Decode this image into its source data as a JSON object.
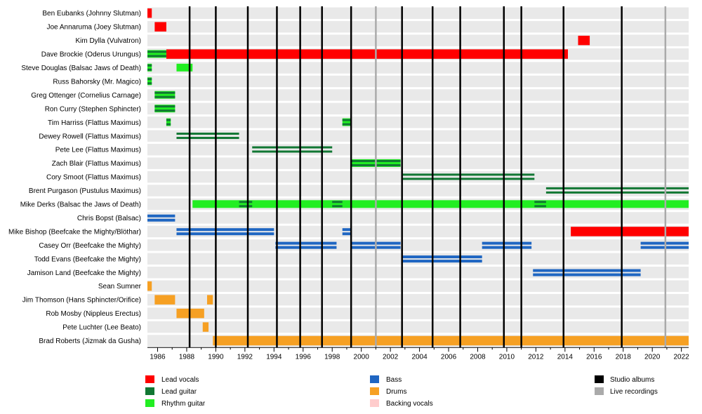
{
  "chart_data": {
    "type": "timeline",
    "x_range": [
      1985.3,
      2022.5
    ],
    "x_ticks": [
      "1986",
      "1988",
      "1990",
      "1992",
      "1994",
      "1996",
      "1998",
      "2000",
      "2002",
      "2004",
      "2006",
      "2008",
      "2010",
      "2012",
      "2014",
      "2016",
      "2018",
      "2020",
      "2022"
    ],
    "studio_albums": [
      1988.2,
      1990.0,
      1992.2,
      1994.2,
      1995.8,
      1997.3,
      1999.3,
      2002.8,
      2004.9,
      2006.8,
      2009.8,
      2011.0,
      2013.9,
      2017.9
    ],
    "live_recordings": [
      2001.0,
      2020.9
    ],
    "members": [
      {
        "name": "Ben Eubanks (Johnny Slutman)",
        "roles": [
          {
            "role": "vocals",
            "start": 1985.3,
            "end": 1985.6
          }
        ]
      },
      {
        "name": "Joe Annaruma (Joey Slutman)",
        "roles": [
          {
            "role": "vocals",
            "start": 1985.8,
            "end": 1986.6
          }
        ]
      },
      {
        "name": "Kim Dylla (Vulvatron)",
        "roles": [
          {
            "role": "vocals",
            "start": 2014.9,
            "end": 2015.7
          }
        ]
      },
      {
        "name": "Dave Brockie (Oderus Urungus)",
        "roles": [
          {
            "role": "vocals",
            "start": 1986.6,
            "end": 2014.2
          },
          {
            "role": "lead",
            "start": 1985.3,
            "end": 1986.6
          },
          {
            "role": "rhythm",
            "start": 1985.3,
            "end": 1986.6
          }
        ]
      },
      {
        "name": "Steve Douglas (Balsac Jaws of Death)",
        "roles": [
          {
            "role": "lead",
            "start": 1985.3,
            "end": 1985.6
          },
          {
            "role": "rhythm",
            "start": 1985.3,
            "end": 1985.6
          },
          {
            "role": "rhythm",
            "start": 1987.3,
            "end": 1988.4
          }
        ]
      },
      {
        "name": "Russ Bahorsky (Mr. Magico)",
        "roles": [
          {
            "role": "lead",
            "start": 1985.3,
            "end": 1985.6
          },
          {
            "role": "rhythm",
            "start": 1985.3,
            "end": 1985.6
          }
        ]
      },
      {
        "name": "Greg Ottenger (Cornelius Carnage)",
        "roles": [
          {
            "role": "lead",
            "start": 1985.8,
            "end": 1987.2
          },
          {
            "role": "rhythm",
            "start": 1985.8,
            "end": 1987.2
          }
        ]
      },
      {
        "name": "Ron Curry (Stephen Sphincter)",
        "roles": [
          {
            "role": "lead",
            "start": 1985.8,
            "end": 1987.2
          },
          {
            "role": "rhythm",
            "start": 1985.8,
            "end": 1987.2
          }
        ]
      },
      {
        "name": "Tim Harriss (Flattus Maximus)",
        "roles": [
          {
            "role": "lead",
            "start": 1986.6,
            "end": 1986.9
          },
          {
            "role": "rhythm",
            "start": 1986.6,
            "end": 1986.9
          },
          {
            "role": "lead",
            "start": 1998.7,
            "end": 1999.3
          },
          {
            "role": "rhythm",
            "start": 1998.7,
            "end": 1999.3
          }
        ]
      },
      {
        "name": "Dewey Rowell (Flattus Maximus)",
        "roles": [
          {
            "role": "lead",
            "start": 1987.3,
            "end": 1991.6
          }
        ]
      },
      {
        "name": "Pete Lee (Flattus Maximus)",
        "roles": [
          {
            "role": "lead",
            "start": 1992.5,
            "end": 1998.0
          }
        ]
      },
      {
        "name": "Zach Blair (Flattus Maximus)",
        "roles": [
          {
            "role": "lead",
            "start": 1999.3,
            "end": 2002.7
          },
          {
            "role": "rhythm",
            "start": 1999.3,
            "end": 2002.7
          }
        ]
      },
      {
        "name": "Cory Smoot (Flattus Maximus)",
        "roles": [
          {
            "role": "lead",
            "start": 2002.8,
            "end": 2011.9
          }
        ]
      },
      {
        "name": "Brent Purgason (Pustulus Maximus)",
        "roles": [
          {
            "role": "lead",
            "start": 2012.7,
            "end": 2022.5
          }
        ]
      },
      {
        "name": "Mike Derks (Balsac the Jaws of Death)",
        "roles": [
          {
            "role": "rhythm",
            "start": 1988.4,
            "end": 2022.5
          },
          {
            "role": "lead",
            "start": 1991.6,
            "end": 1992.5
          },
          {
            "role": "lead",
            "start": 1998.0,
            "end": 1998.7
          },
          {
            "role": "lead",
            "start": 2011.9,
            "end": 2012.7
          }
        ]
      },
      {
        "name": "Chris Bopst (Balsac)",
        "roles": [
          {
            "role": "bass",
            "start": 1985.3,
            "end": 1987.2
          }
        ]
      },
      {
        "name": "Mike Bishop (Beefcake the Mighty/Blöthar)",
        "roles": [
          {
            "role": "bass",
            "start": 1987.3,
            "end": 1994.0
          },
          {
            "role": "bass",
            "start": 1998.7,
            "end": 1999.3
          },
          {
            "role": "vocals",
            "start": 2014.4,
            "end": 2022.5
          }
        ]
      },
      {
        "name": "Casey Orr (Beefcake the Mighty)",
        "roles": [
          {
            "role": "bass",
            "start": 1994.1,
            "end": 1998.3
          },
          {
            "role": "bass",
            "start": 1999.3,
            "end": 2002.7
          },
          {
            "role": "bass",
            "start": 2008.3,
            "end": 2011.7
          },
          {
            "role": "bass",
            "start": 2019.2,
            "end": 2022.5
          }
        ]
      },
      {
        "name": "Todd Evans (Beefcake the Mighty)",
        "roles": [
          {
            "role": "bass",
            "start": 2002.8,
            "end": 2008.3
          }
        ]
      },
      {
        "name": "Jamison Land (Beefcake the Mighty)",
        "roles": [
          {
            "role": "bass",
            "start": 2011.8,
            "end": 2019.2
          }
        ]
      },
      {
        "name": "Sean Sumner",
        "roles": [
          {
            "role": "drums",
            "start": 1985.3,
            "end": 1985.6
          }
        ]
      },
      {
        "name": "Jim Thomson (Hans Sphincter/Orifice)",
        "roles": [
          {
            "role": "drums",
            "start": 1985.8,
            "end": 1987.2
          },
          {
            "role": "drums",
            "start": 1989.4,
            "end": 1989.8
          }
        ]
      },
      {
        "name": "Rob Mosby (Nippleus Erectus)",
        "roles": [
          {
            "role": "drums",
            "start": 1987.3,
            "end": 1989.2
          }
        ]
      },
      {
        "name": "Pete Luchter (Lee Beato)",
        "roles": [
          {
            "role": "drums",
            "start": 1989.1,
            "end": 1989.5
          }
        ]
      },
      {
        "name": "Brad Roberts (Jizmak da Gusha)",
        "roles": [
          {
            "role": "drums",
            "start": 1989.8,
            "end": 2022.5
          }
        ]
      }
    ],
    "legend": {
      "roles": [
        {
          "key": "vocals",
          "label": "Lead vocals",
          "color": "#ff0000"
        },
        {
          "key": "lead",
          "label": "Lead guitar",
          "color": "#117733"
        },
        {
          "key": "rhythm",
          "label": "Rhythm guitar",
          "color": "#22ee22"
        },
        {
          "key": "bass",
          "label": "Bass",
          "color": "#1f66c2"
        },
        {
          "key": "drums",
          "label": "Drums",
          "color": "#f6a023"
        },
        {
          "key": "backing",
          "label": "Backing vocals",
          "color": "#ffcccc"
        }
      ],
      "lines": [
        {
          "key": "studio",
          "label": "Studio albums",
          "color": "#000000"
        },
        {
          "key": "live",
          "label": "Live recordings",
          "color": "#aaaaaa"
        }
      ]
    }
  }
}
